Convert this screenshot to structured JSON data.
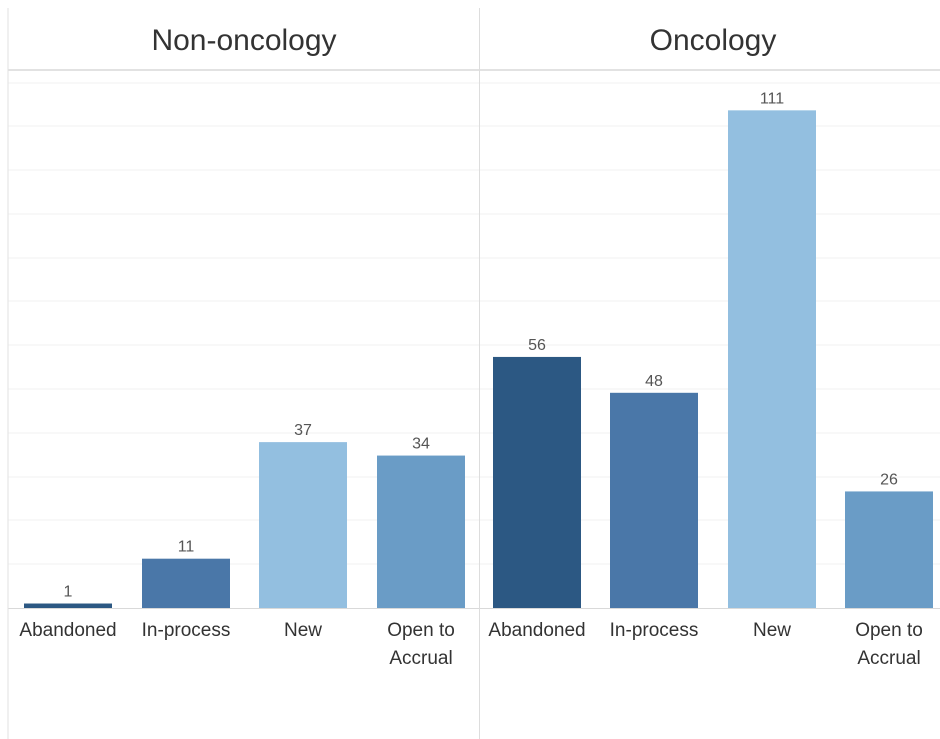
{
  "chart_data": {
    "type": "bar",
    "title": "",
    "xlabel": "",
    "ylabel": "",
    "ylim": [
      0,
      120
    ],
    "grid": true,
    "legend": "none",
    "colors": {
      "Abandoned": "#2c5883",
      "In-process": "#4a77a8",
      "New": "#93bfe0",
      "Open to Accrual": "#6a9cc6"
    },
    "categories": [
      "Abandoned",
      "In-process",
      "New",
      "Open to Accrual"
    ],
    "category_display": [
      [
        "Abandoned"
      ],
      [
        "In-process"
      ],
      [
        "New"
      ],
      [
        "Open to",
        "Accrual"
      ]
    ],
    "panels": [
      {
        "name": "Non-oncology",
        "values": [
          1,
          11,
          37,
          34
        ]
      },
      {
        "name": "Oncology",
        "values": [
          56,
          48,
          111,
          26
        ]
      }
    ]
  }
}
